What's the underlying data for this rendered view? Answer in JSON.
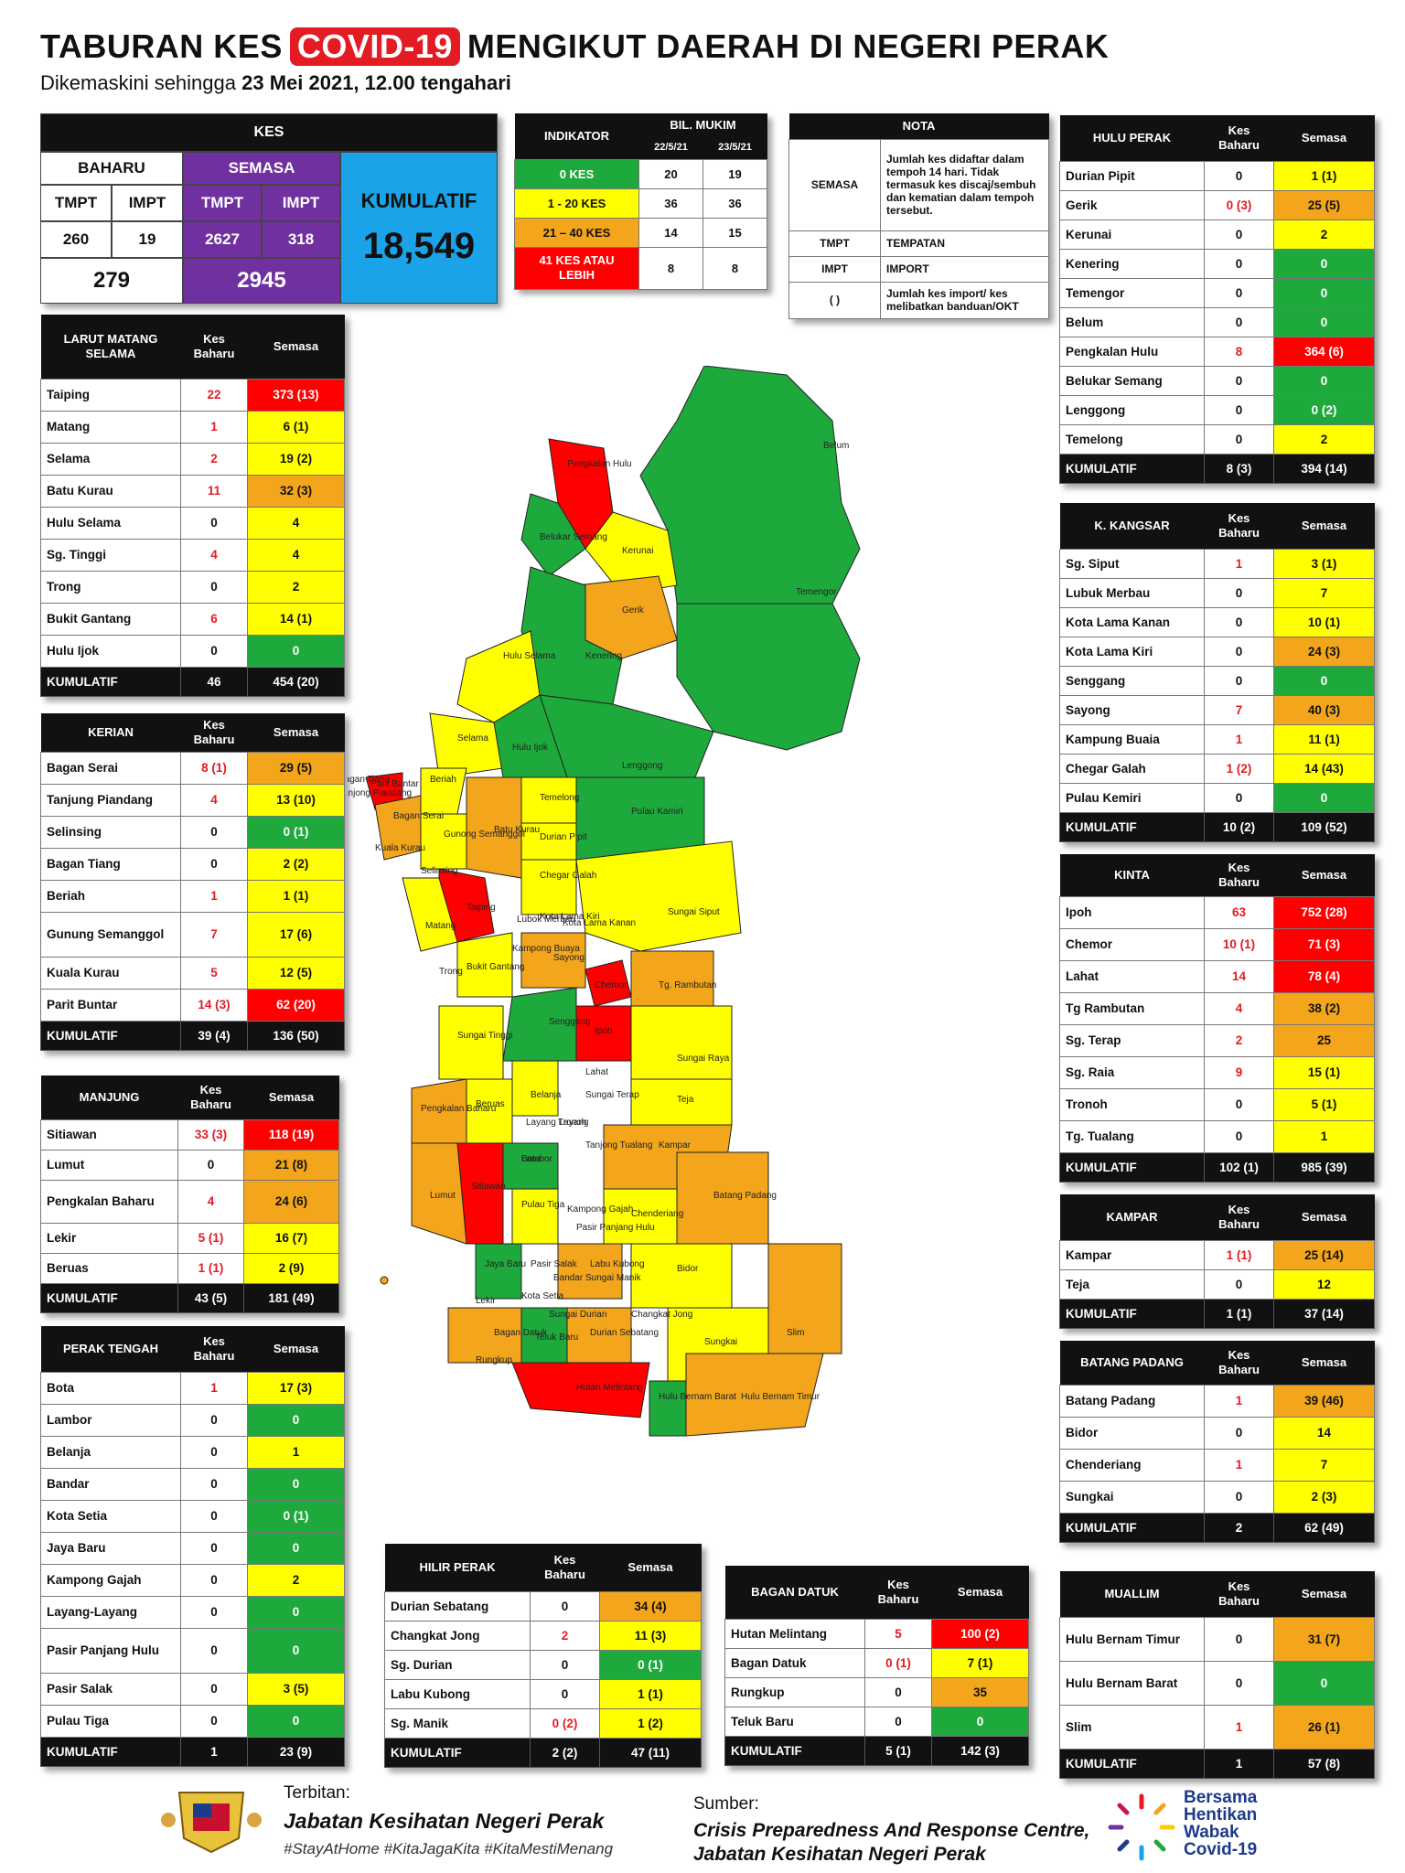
{
  "header": {
    "title_a": "TABURAN KES",
    "title_hl": "COVID-19",
    "title_b": "MENGIKUT DAERAH DI NEGERI PERAK",
    "sub_a": "Dikemaskini sehingga",
    "sub_b": "23 Mei 2021, 12.00",
    "sub_c": "tengahari"
  },
  "summary": {
    "kes": "KES",
    "baharu": "BAHARU",
    "semasa": "SEMASA",
    "tmpt": "TMPT",
    "impt": "IMPT",
    "baharu_tmpt": "260",
    "baharu_impt": "19",
    "semasa_tmpt": "2627",
    "semasa_impt": "318",
    "baharu_total": "279",
    "semasa_total": "2945",
    "kumulatif_label": "KUMULATIF",
    "kumulatif_value": "18,549"
  },
  "indikator": {
    "h_ind": "INDIKATOR",
    "h_bil": "BIL. MUKIM",
    "d1": "22/5/21",
    "d2": "23/5/21",
    "rows": [
      {
        "label": "0 KES",
        "a": "20",
        "b": "19"
      },
      {
        "label": "1 - 20 KES",
        "a": "36",
        "b": "36"
      },
      {
        "label": "21 – 40 KES",
        "a": "14",
        "b": "15"
      },
      {
        "label": "41 KES ATAU LEBIH",
        "a": "8",
        "b": "8"
      }
    ]
  },
  "nota": {
    "h": "NOTA",
    "rows": [
      {
        "k": "SEMASA",
        "v": "Jumlah kes didaftar dalam tempoh 14 hari. Tidak termasuk kes discaj/sembuh dan kematian dalam tempoh tersebut."
      },
      {
        "k": "TMPT",
        "v": "TEMPATAN"
      },
      {
        "k": "IMPT",
        "v": "IMPORT"
      },
      {
        "k": "(   )",
        "v": "Jumlah kes import/ kes melibatkan banduan/OKT"
      }
    ]
  },
  "col_kes": "Kes Baharu",
  "col_semasa": "Semasa",
  "kumulatif": "KUMULATIF",
  "districts": {
    "larut": {
      "name": "LARUT MATANG SELAMA",
      "rows": [
        {
          "m": "Taiping",
          "b": "22",
          "s": "373 (13)",
          "c": "red"
        },
        {
          "m": "Matang",
          "b": "1",
          "s": "6 (1)",
          "c": "yellow"
        },
        {
          "m": "Selama",
          "b": "2",
          "s": "19 (2)",
          "c": "yellow"
        },
        {
          "m": "Batu Kurau",
          "b": "11",
          "s": "32 (3)",
          "c": "orange"
        },
        {
          "m": "Hulu Selama",
          "b": "0",
          "s": "4",
          "c": "yellow"
        },
        {
          "m": "Sg. Tinggi",
          "b": "4",
          "s": "4",
          "c": "yellow"
        },
        {
          "m": "Trong",
          "b": "0",
          "s": "2",
          "c": "yellow"
        },
        {
          "m": "Bukit Gantang",
          "b": "6",
          "s": "14 (1)",
          "c": "yellow"
        },
        {
          "m": "Hulu Ijok",
          "b": "0",
          "s": "0",
          "c": "green"
        }
      ],
      "tb": "46",
      "ts": "454 (20)"
    },
    "kerian": {
      "name": "KERIAN",
      "rows": [
        {
          "m": "Bagan Serai",
          "b": "8 (1)",
          "s": "29 (5)",
          "c": "orange"
        },
        {
          "m": "Tanjung Piandang",
          "b": "4",
          "s": "13 (10)",
          "c": "yellow"
        },
        {
          "m": "Selinsing",
          "b": "0",
          "s": "0 (1)",
          "c": "green"
        },
        {
          "m": "Bagan Tiang",
          "b": "0",
          "s": "2 (2)",
          "c": "yellow"
        },
        {
          "m": "Beriah",
          "b": "1",
          "s": "1 (1)",
          "c": "yellow"
        },
        {
          "m": "Gunung Semanggol",
          "b": "7",
          "s": "17 (6)",
          "c": "yellow"
        },
        {
          "m": "Kuala Kurau",
          "b": "5",
          "s": "12 (5)",
          "c": "yellow"
        },
        {
          "m": "Parit Buntar",
          "b": "14 (3)",
          "s": "62 (20)",
          "c": "red"
        }
      ],
      "tb": "39 (4)",
      "ts": "136 (50)"
    },
    "manjung": {
      "name": "MANJUNG",
      "rows": [
        {
          "m": "Sitiawan",
          "b": "33 (3)",
          "s": "118 (19)",
          "c": "red"
        },
        {
          "m": "Lumut",
          "b": "0",
          "s": "21 (8)",
          "c": "orange"
        },
        {
          "m": "Pengkalan Baharu",
          "b": "4",
          "s": "24 (6)",
          "c": "orange"
        },
        {
          "m": "Lekir",
          "b": "5 (1)",
          "s": "16 (7)",
          "c": "yellow"
        },
        {
          "m": "Beruas",
          "b": "1 (1)",
          "s": "2 (9)",
          "c": "yellow"
        }
      ],
      "tb": "43 (5)",
      "ts": "181 (49)"
    },
    "tengah": {
      "name": "PERAK TENGAH",
      "rows": [
        {
          "m": "Bota",
          "b": "1",
          "s": "17 (3)",
          "c": "yellow"
        },
        {
          "m": "Lambor",
          "b": "0",
          "s": "0",
          "c": "green"
        },
        {
          "m": "Belanja",
          "b": "0",
          "s": "1",
          "c": "yellow"
        },
        {
          "m": "Bandar",
          "b": "0",
          "s": "0",
          "c": "green"
        },
        {
          "m": "Kota Setia",
          "b": "0",
          "s": "0 (1)",
          "c": "green"
        },
        {
          "m": "Jaya Baru",
          "b": "0",
          "s": "0",
          "c": "green"
        },
        {
          "m": "Kampong Gajah",
          "b": "0",
          "s": "2",
          "c": "yellow"
        },
        {
          "m": "Layang-Layang",
          "b": "0",
          "s": "0",
          "c": "green"
        },
        {
          "m": "Pasir Panjang Hulu",
          "b": "0",
          "s": "0",
          "c": "green"
        },
        {
          "m": "Pasir Salak",
          "b": "0",
          "s": "3 (5)",
          "c": "yellow"
        },
        {
          "m": "Pulau Tiga",
          "b": "0",
          "s": "0",
          "c": "green"
        }
      ],
      "tb": "1",
      "ts": "23 (9)"
    },
    "hilir": {
      "name": "HILIR PERAK",
      "rows": [
        {
          "m": "Durian Sebatang",
          "b": "0",
          "s": "34 (4)",
          "c": "orange"
        },
        {
          "m": "Changkat Jong",
          "b": "2",
          "s": "11 (3)",
          "c": "yellow"
        },
        {
          "m": "Sg. Durian",
          "b": "0",
          "s": "0 (1)",
          "c": "green"
        },
        {
          "m": "Labu Kubong",
          "b": "0",
          "s": "1 (1)",
          "c": "yellow"
        },
        {
          "m": "Sg. Manik",
          "b": "0 (2)",
          "s": "1 (2)",
          "c": "yellow"
        }
      ],
      "tb": "2 (2)",
      "ts": "47 (11)"
    },
    "bagan": {
      "name": "BAGAN DATUK",
      "rows": [
        {
          "m": "Hutan Melintang",
          "b": "5",
          "s": "100 (2)",
          "c": "red"
        },
        {
          "m": "Bagan Datuk",
          "b": "0 (1)",
          "s": "7 (1)",
          "c": "yellow"
        },
        {
          "m": "Rungkup",
          "b": "0",
          "s": "35",
          "c": "orange"
        },
        {
          "m": "Teluk Baru",
          "b": "0",
          "s": "0",
          "c": "green"
        }
      ],
      "tb": "5 (1)",
      "ts": "142 (3)"
    },
    "hulu": {
      "name": "HULU PERAK",
      "rows": [
        {
          "m": "Durian Pipit",
          "b": "0",
          "s": "1 (1)",
          "c": "yellow"
        },
        {
          "m": "Gerik",
          "b": "0 (3)",
          "s": "25 (5)",
          "c": "orange"
        },
        {
          "m": "Kerunai",
          "b": "0",
          "s": "2",
          "c": "yellow"
        },
        {
          "m": "Kenering",
          "b": "0",
          "s": "0",
          "c": "green"
        },
        {
          "m": "Temengor",
          "b": "0",
          "s": "0",
          "c": "green"
        },
        {
          "m": "Belum",
          "b": "0",
          "s": "0",
          "c": "green"
        },
        {
          "m": "Pengkalan Hulu",
          "b": "8",
          "s": "364 (6)",
          "c": "red"
        },
        {
          "m": "Belukar Semang",
          "b": "0",
          "s": "0",
          "c": "green"
        },
        {
          "m": "Lenggong",
          "b": "0",
          "s": "0 (2)",
          "c": "green"
        },
        {
          "m": "Temelong",
          "b": "0",
          "s": "2",
          "c": "yellow"
        }
      ],
      "tb": "8 (3)",
      "ts": "394 (14)"
    },
    "kangsar": {
      "name": "K. KANGSAR",
      "rows": [
        {
          "m": "Sg. Siput",
          "b": "1",
          "s": "3 (1)",
          "c": "yellow"
        },
        {
          "m": "Lubuk Merbau",
          "b": "0",
          "s": "7",
          "c": "yellow"
        },
        {
          "m": "Kota Lama Kanan",
          "b": "0",
          "s": "10 (1)",
          "c": "yellow"
        },
        {
          "m": "Kota Lama Kiri",
          "b": "0",
          "s": "24 (3)",
          "c": "orange"
        },
        {
          "m": "Senggang",
          "b": "0",
          "s": "0",
          "c": "green"
        },
        {
          "m": "Sayong",
          "b": "7",
          "s": "40 (3)",
          "c": "orange"
        },
        {
          "m": "Kampung Buaia",
          "b": "1",
          "s": "11 (1)",
          "c": "yellow"
        },
        {
          "m": "Chegar Galah",
          "b": "1 (2)",
          "s": "14 (43)",
          "c": "yellow"
        },
        {
          "m": "Pulau Kemiri",
          "b": "0",
          "s": "0",
          "c": "green"
        }
      ],
      "tb": "10 (2)",
      "ts": "109 (52)"
    },
    "kinta": {
      "name": "KINTA",
      "rows": [
        {
          "m": "Ipoh",
          "b": "63",
          "s": "752 (28)",
          "c": "red"
        },
        {
          "m": "Chemor",
          "b": "10 (1)",
          "s": "71 (3)",
          "c": "red"
        },
        {
          "m": "Lahat",
          "b": "14",
          "s": "78 (4)",
          "c": "red"
        },
        {
          "m": "Tg Rambutan",
          "b": "4",
          "s": "38 (2)",
          "c": "orange"
        },
        {
          "m": "Sg. Terap",
          "b": "2",
          "s": "25",
          "c": "orange"
        },
        {
          "m": "Sg. Raia",
          "b": "9",
          "s": "15 (1)",
          "c": "yellow"
        },
        {
          "m": "Tronoh",
          "b": "0",
          "s": "5 (1)",
          "c": "yellow"
        },
        {
          "m": "Tg. Tualang",
          "b": "0",
          "s": "1",
          "c": "yellow"
        }
      ],
      "tb": "102 (1)",
      "ts": "985 (39)"
    },
    "kampar": {
      "name": "KAMPAR",
      "rows": [
        {
          "m": "Kampar",
          "b": "1 (1)",
          "s": "25 (14)",
          "c": "orange"
        },
        {
          "m": "Teja",
          "b": "0",
          "s": "12",
          "c": "yellow"
        }
      ],
      "tb": "1 (1)",
      "ts": "37 (14)"
    },
    "batang": {
      "name": "BATANG PADANG",
      "rows": [
        {
          "m": "Batang Padang",
          "b": "1",
          "s": "39 (46)",
          "c": "orange"
        },
        {
          "m": "Bidor",
          "b": "0",
          "s": "14",
          "c": "yellow"
        },
        {
          "m": "Chenderiang",
          "b": "1",
          "s": "7",
          "c": "yellow"
        },
        {
          "m": "Sungkai",
          "b": "0",
          "s": "2 (3)",
          "c": "yellow"
        }
      ],
      "tb": "2",
      "ts": "62 (49)"
    },
    "muallim": {
      "name": "MUALLIM",
      "rows": [
        {
          "m": "Hulu Bernam Timur",
          "b": "0",
          "s": "31 (7)",
          "c": "orange"
        },
        {
          "m": "Hulu Bernam Barat",
          "b": "0",
          "s": "0",
          "c": "green"
        },
        {
          "m": "Slim",
          "b": "1",
          "s": "26 (1)",
          "c": "orange"
        }
      ],
      "tb": "1",
      "ts": "57 (8)"
    }
  },
  "map_labels": [
    "Belum",
    "Pengkalan Hulu",
    "Belukar Semang",
    "Kerunai",
    "Temengor",
    "Gerik",
    "Kenering",
    "Hulu Selama",
    "Selama",
    "Hulu Ijok",
    "Lenggong",
    "Parit Buntar",
    "Bagan Tiang",
    "Tanjong Piandang",
    "Beriah",
    "Bagan Serai",
    "Kuala Kurau",
    "Gunong Semanggol",
    "Batu Kurau",
    "Temelong",
    "Durian Pipit",
    "Pulau Kamiri",
    "Selinsing",
    "Chegar Galah",
    "Taiping",
    "Matang",
    "Lubok Merbau",
    "Kota Lama Kiri",
    "Kota Lama Kanan",
    "Sungai Siput",
    "Kampong Buaya",
    "Sayong",
    "Bukit Gantang",
    "Trong",
    "Chemor",
    "Tg. Rambutan",
    "Senggang",
    "Sungai Tinggi",
    "Ipoh",
    "Lahat",
    "Sungai Raya",
    "Pengkalan Baharu",
    "Beruas",
    "Belanja",
    "Sungai Terap",
    "Teja",
    "Layang Layang",
    "Tronoh",
    "Kampar",
    "Tanjong Tualang",
    "Bota",
    "Sitiawan",
    "Lumut",
    "Lambor",
    "Batang Padang",
    "Pulau Tiga",
    "Kampong Gajah",
    "Chenderiang",
    "Pasir Panjang Hulu",
    "Jaya Baru",
    "Pasir Salak",
    "Labu Kubong",
    "Bidor",
    "Bandar",
    "Sungai Manik",
    "Lekir",
    "Kota Setia",
    "Sungai Durian",
    "Changkat Jong",
    "Bagan Datuk",
    "Teluk Baru",
    "Durian Sebatang",
    "Sungkai",
    "Rungkup",
    "Slim",
    "Hutan Melintang",
    "Hulu Bernam Barat",
    "Hulu Bernam Timur"
  ],
  "footer": {
    "terbitan": "Terbitan:",
    "jabatan": "Jabatan Kesihatan Negeri Perak",
    "hashtags": "#StayAtHome #KitaJagaKita #KitaMestiMenang",
    "sumber": "Sumber:",
    "src1": "Crisis Preparedness And Response Centre,",
    "src2": "Jabatan Kesihatan Negeri Perak",
    "logo1": "Bersama",
    "logo2": "Hentikan",
    "logo3": "Wabak",
    "logo4": "Covid-19"
  },
  "colors": {
    "red": "#ff0000",
    "orange": "#f3a51c",
    "yellow": "#ffff00",
    "green": "#1ea93c"
  }
}
